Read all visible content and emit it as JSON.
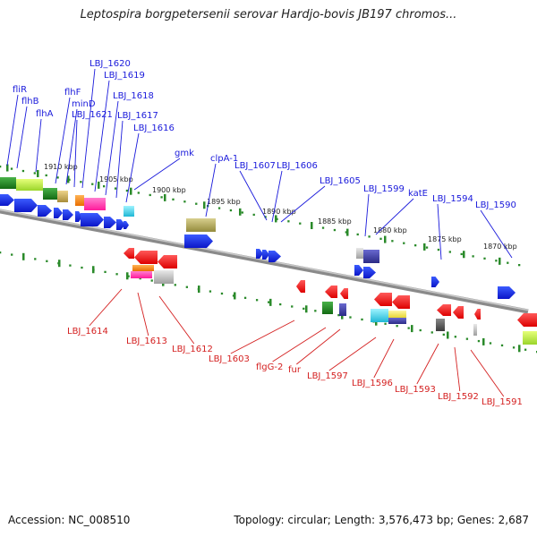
{
  "title": "Leptospira borgpetersenii serovar Hardjo-bovis JB197 chromos...",
  "footer": {
    "accession": "Accession: NC_008510",
    "topology": "Topology: circular; Length: 3,576,473 bp; Genes: 2,687"
  },
  "colors": {
    "forward_label": "#1a1adb",
    "reverse_label": "#d42020",
    "tick": "#2a8a2a",
    "backbone": "#8a8a8a"
  },
  "ticks": [
    "1910 kbp",
    "1905 kbp",
    "1900 kbp",
    "1895 kbp",
    "1890 kbp",
    "1885 kbp",
    "1880 kbp",
    "1875 kbp",
    "1870 kbp"
  ],
  "forward_genes": [
    "fliR",
    "flhB",
    "flhA",
    "flhF",
    "minD",
    "LBJ_1621",
    "LBJ_1620",
    "LBJ_1619",
    "LBJ_1618",
    "LBJ_1617",
    "LBJ_1616",
    "gmk",
    "clpA-1",
    "LBJ_1607",
    "LBJ_1606",
    "LBJ_1605",
    "LBJ_1599",
    "katE",
    "LBJ_1594",
    "LBJ_1590"
  ],
  "reverse_genes": [
    "LBJ_1614",
    "LBJ_1613",
    "LBJ_1612",
    "LBJ_1603",
    "flgG-2",
    "fur",
    "LBJ_1597",
    "LBJ_1596",
    "LBJ_1593",
    "LBJ_1592",
    "LBJ_1591"
  ]
}
